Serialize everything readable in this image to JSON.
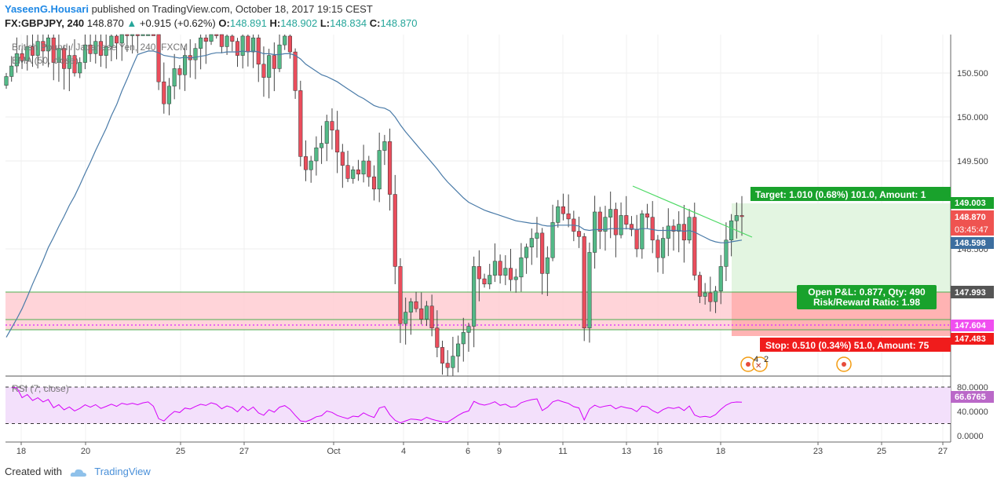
{
  "header": {
    "author": "YaseenG.Housari",
    "published": "published on TradingView.com, October 18, 2017 19:15 CEST",
    "symbol": "FX:GBPJPY, 240",
    "last": "148.870",
    "change": "+0.915 (+0.62%)",
    "o_label": "O:",
    "o": "148.891",
    "h_label": "H:",
    "h": "148.902",
    "l_label": "L:",
    "l": "148.834",
    "c_label": "C:",
    "c": "148.870"
  },
  "chart_data": {
    "type": "candlestick",
    "title": "British Pound / Japanese Yen, 240, FXCM",
    "ma_label": "EMA (50, close)",
    "ylim": [
      147.0,
      151.0
    ],
    "y_ticks": [
      "150.500",
      "150.000",
      "149.500",
      "148.500"
    ],
    "x_ticks": [
      "18",
      "20",
      "25",
      "27",
      "Oct",
      "4",
      "6",
      "9",
      "11",
      "13",
      "16",
      "18",
      "23",
      "25",
      "27"
    ],
    "price_tags": {
      "target": "149.003",
      "last": "148.870",
      "countdown": "03:45:47",
      "ema": "148.598",
      "entry": "147.993",
      "line": "147.604",
      "stop": "147.483"
    },
    "annotations": {
      "target": "Target: 1.010 (0.68%) 101.0, Amount: 1",
      "pnl": "Open P&L: 0.877, Qty: 490",
      "rr": "Risk/Reward Ratio: 1.98",
      "stop": "Stop: 0.510 (0.34%) 51.0, Amount: 75"
    },
    "event_count": "4",
    "event_count2": "2",
    "closes": [
      150.46,
      150.58,
      150.72,
      150.64,
      150.8,
      150.7,
      150.86,
      150.75,
      150.9,
      150.62,
      150.78,
      150.55,
      150.7,
      150.5,
      150.62,
      150.82,
      150.72,
      150.86,
      150.7,
      150.8,
      150.92,
      150.84,
      151.0,
      150.96,
      151.02,
      150.98,
      151.06,
      151.1,
      151.0,
      150.4,
      150.15,
      150.35,
      150.55,
      150.48,
      150.7,
      150.65,
      150.78,
      150.9,
      150.86,
      151.0,
      150.95,
      150.8,
      150.92,
      150.86,
      150.7,
      150.92,
      150.74,
      150.9,
      150.6,
      150.45,
      150.7,
      150.55,
      150.82,
      150.92,
      150.74,
      150.3,
      149.55,
      149.4,
      149.5,
      149.65,
      149.7,
      149.95,
      149.85,
      149.6,
      149.45,
      149.3,
      149.4,
      149.35,
      149.5,
      149.32,
      149.18,
      149.62,
      149.72,
      149.12,
      148.3,
      147.65,
      147.78,
      147.9,
      147.82,
      147.7,
      147.85,
      147.6,
      147.38,
      147.2,
      147.15,
      147.28,
      147.42,
      147.55,
      147.62,
      148.3,
      148.16,
      148.1,
      148.2,
      148.36,
      148.2,
      148.28,
      148.15,
      148.18,
      148.4,
      148.52,
      148.62,
      148.68,
      148.22,
      148.4,
      148.8,
      148.98,
      148.9,
      148.84,
      148.7,
      148.64,
      147.6,
      148.46,
      148.92,
      148.7,
      148.86,
      148.95,
      148.66,
      148.88,
      148.78,
      148.72,
      148.5,
      148.9,
      148.86,
      148.6,
      148.4,
      148.62,
      148.76,
      148.7,
      148.78,
      148.6,
      148.86,
      148.2,
      147.96,
      148.0,
      147.9,
      148.02,
      148.3,
      148.6,
      148.82,
      148.88,
      148.87
    ],
    "ema": [
      150.62,
      150.6,
      150.58,
      150.57,
      150.58,
      150.6,
      150.61,
      150.62,
      150.64,
      150.63,
      150.63,
      150.62,
      150.62,
      150.6,
      150.6,
      150.61,
      150.61,
      150.62,
      150.62,
      150.62,
      150.64,
      150.64,
      150.67,
      150.68,
      150.7,
      150.71,
      150.73,
      150.75,
      150.75,
      150.73,
      150.7,
      150.69,
      150.68,
      150.67,
      150.68,
      150.67,
      150.68,
      150.69,
      150.7,
      150.72,
      150.73,
      150.73,
      150.74,
      150.74,
      150.74,
      150.75,
      150.74,
      150.75,
      150.74,
      150.72,
      150.72,
      150.71,
      150.71,
      150.72,
      150.72,
      150.7,
      150.66,
      150.6,
      150.56,
      150.52,
      150.48,
      150.46,
      150.43,
      150.4,
      150.36,
      150.32,
      150.28,
      150.24,
      150.21,
      150.17,
      150.13,
      150.11,
      150.1,
      150.07,
      150.0,
      149.91,
      149.83,
      149.76,
      149.69,
      149.62,
      149.55,
      149.48,
      149.41,
      149.33,
      149.26,
      149.2,
      149.14,
      149.08,
      149.03,
      149.0,
      148.97,
      148.94,
      148.92,
      148.9,
      148.88,
      148.86,
      148.84,
      148.82,
      148.81,
      148.8,
      148.79,
      148.79,
      148.77,
      148.76,
      148.76,
      148.77,
      148.77,
      148.77,
      148.77,
      148.76,
      148.72,
      148.71,
      148.72,
      148.72,
      148.72,
      148.73,
      148.73,
      148.73,
      148.73,
      148.73,
      148.72,
      148.73,
      148.73,
      148.72,
      148.71,
      148.71,
      148.71,
      148.71,
      148.71,
      148.7,
      148.71,
      148.69,
      148.66,
      148.63,
      148.6,
      148.58,
      148.57,
      148.57,
      148.58,
      148.59,
      148.6
    ],
    "rsi": {
      "label": "RSI (7, close)",
      "y_ticks": [
        "80.0000",
        "40.0000",
        "0.0000"
      ],
      "last": "66.6765",
      "ylim": [
        0,
        100
      ],
      "levels": [
        80,
        20
      ]
    }
  },
  "footer": {
    "created": "Created with",
    "brand": "TradingView"
  }
}
